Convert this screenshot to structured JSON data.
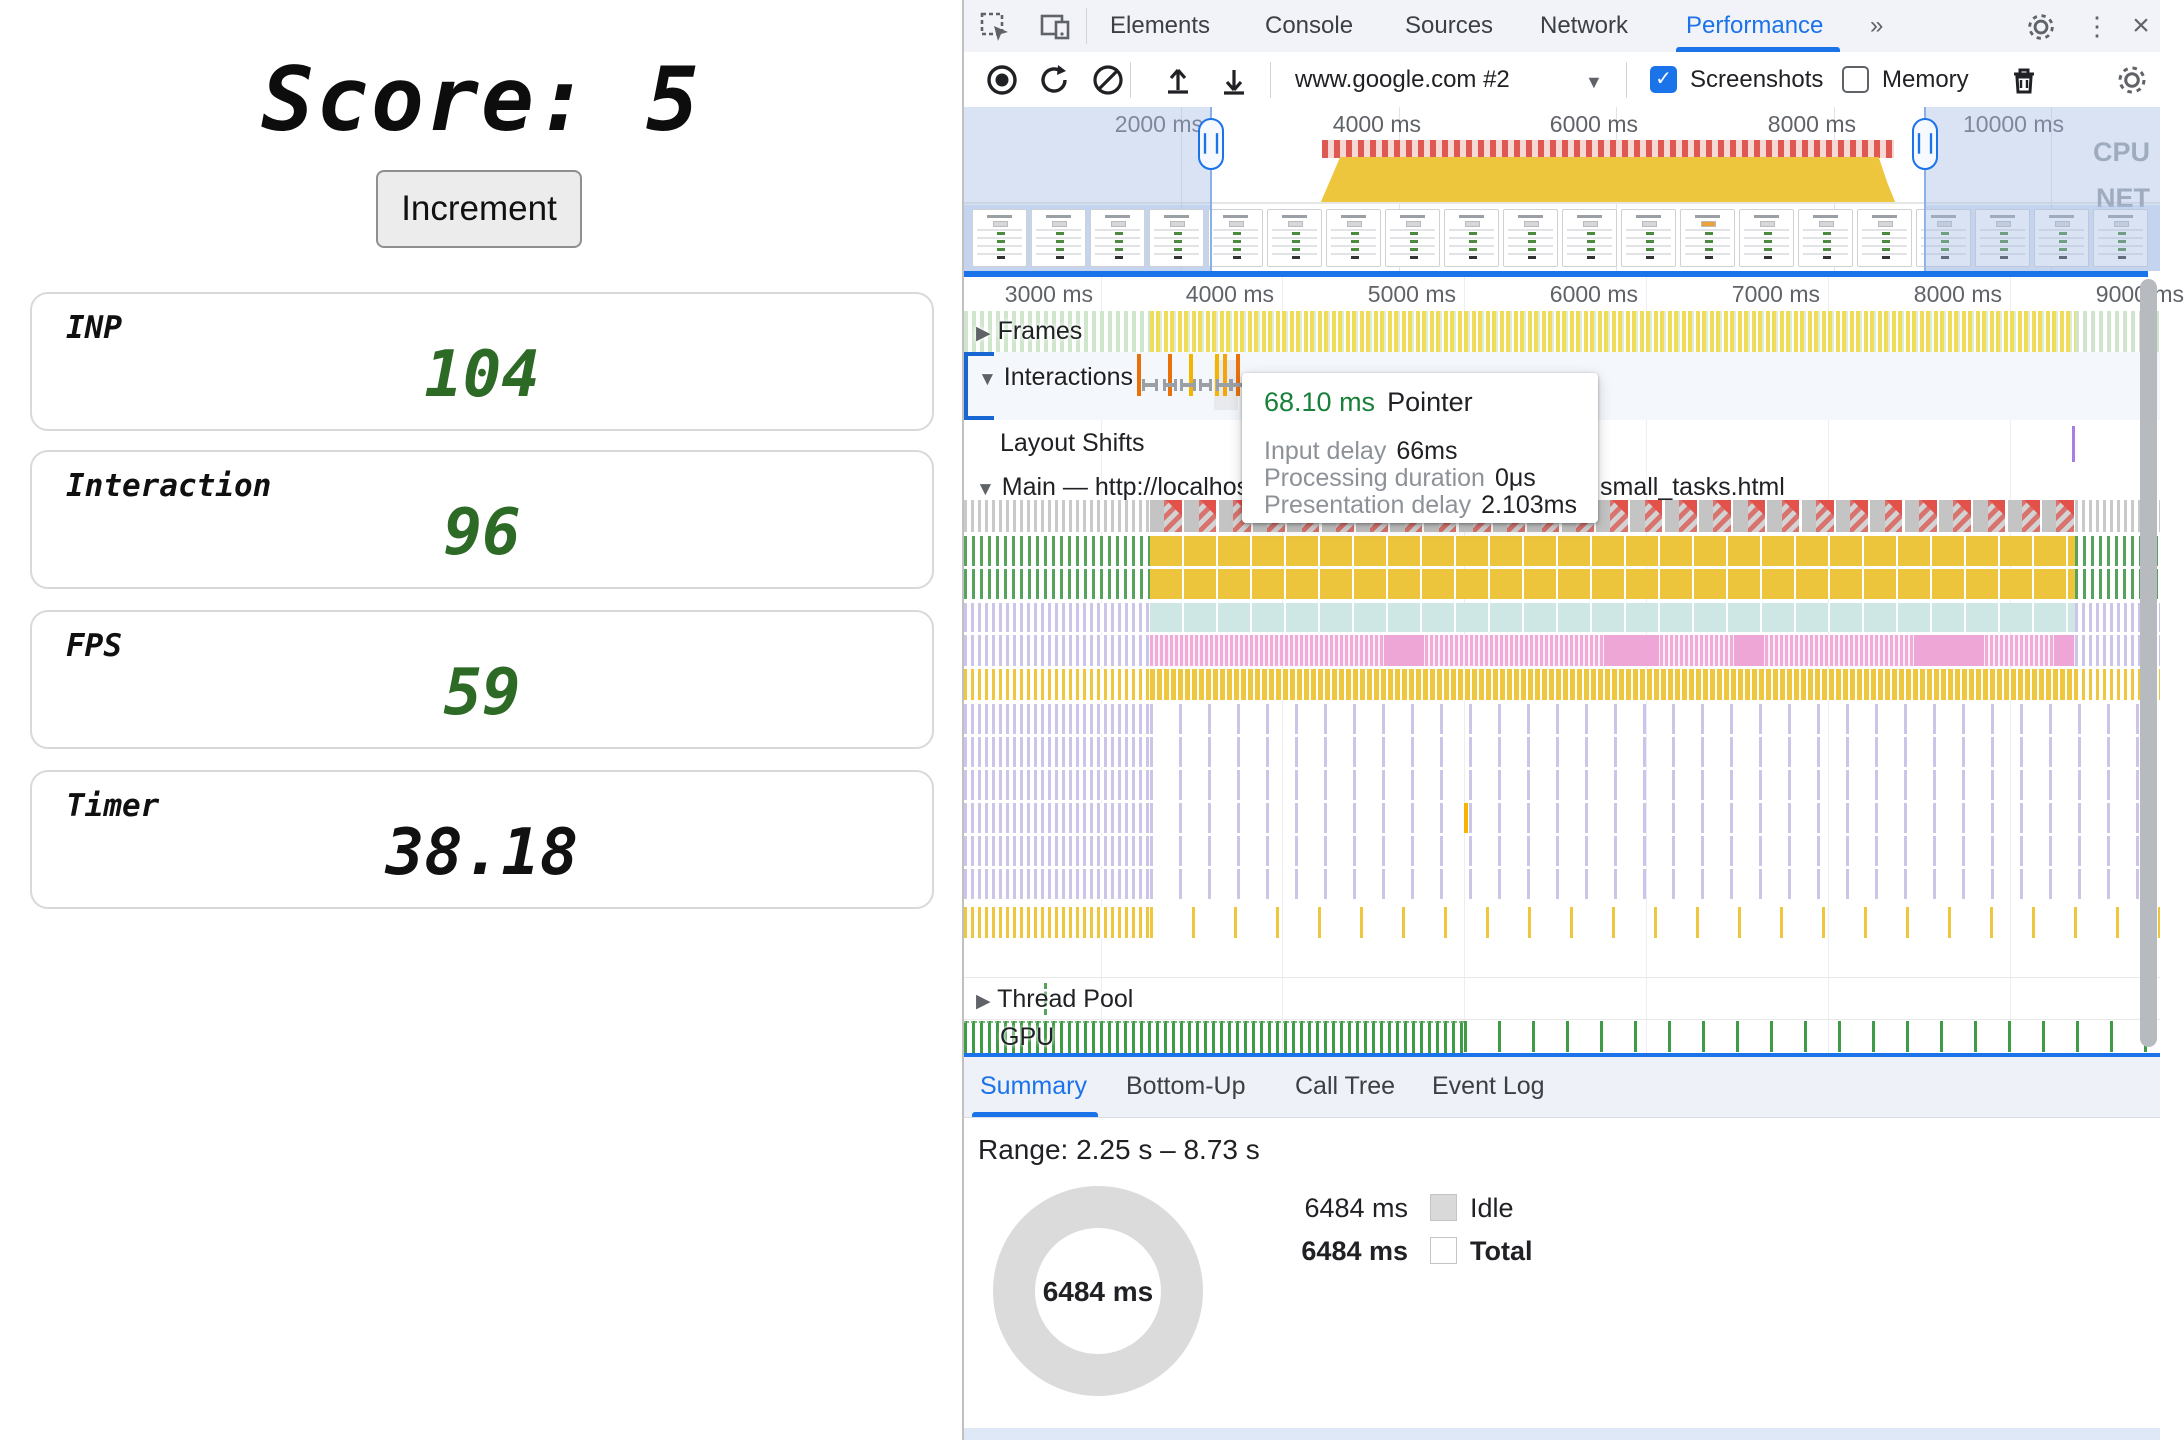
{
  "page": {
    "title": "Score: 5",
    "button": "Increment",
    "metrics": [
      {
        "label": "INP",
        "value": "104",
        "color": "#2d6a26"
      },
      {
        "label": "Interaction",
        "value": "96",
        "color": "#2d6a26"
      },
      {
        "label": "FPS",
        "value": "59",
        "color": "#2d6a26"
      },
      {
        "label": "Timer",
        "value": "38.18",
        "color": "#111111"
      }
    ]
  },
  "devtools": {
    "tabs": [
      "Elements",
      "Console",
      "Sources",
      "Network",
      "Performance"
    ],
    "active_tab": "Performance",
    "more_tabs_icon": "»",
    "toolbar": {
      "target": "www.google.com #2",
      "screenshots_label": "Screenshots",
      "memory_label": "Memory",
      "check_glyph": "✓"
    },
    "overview": {
      "ruler": [
        "2000 ms",
        "4000 ms",
        "6000 ms",
        "8000 ms",
        "10000 ms"
      ],
      "cpu_label": "CPU",
      "net_label": "NET",
      "handle_glyph": "∣∣"
    },
    "timeline": {
      "ruler": [
        "3000 ms",
        "4000 ms",
        "5000 ms",
        "6000 ms",
        "7000 ms",
        "8000 ms",
        "9000 ms"
      ],
      "frames_label": "Frames",
      "interactions_label": "Interactions",
      "layout_shifts_label": "Layout Shifts",
      "main_label_left": "Main — http://localhost:",
      "main_label_right": "small_tasks.html",
      "thread_pool_label": "Thread Pool",
      "gpu_label": "GPU",
      "expand_glyph": "▶",
      "collapse_glyph": "▼"
    },
    "tooltip": {
      "duration": "68.10 ms",
      "type": "Pointer",
      "rows": [
        {
          "label": "Input delay",
          "value": "66ms"
        },
        {
          "label": "Processing duration",
          "value": "0μs"
        },
        {
          "label": "Presentation delay",
          "value": "2.103ms"
        }
      ]
    },
    "bottom_tabs": [
      "Summary",
      "Bottom-Up",
      "Call Tree",
      "Event Log"
    ],
    "active_bottom_tab": "Summary",
    "summary": {
      "range": "Range: 2.25 s – 8.73 s",
      "donut_value": "6484 ms",
      "legend": [
        {
          "value": "6484 ms",
          "label": "Idle",
          "swatch": "#d9d9d9"
        },
        {
          "value": "6484 ms",
          "label": "Total",
          "swatch": "#ffffff"
        }
      ]
    },
    "colors": {
      "accent": "#1a73e8",
      "long_task_red": "#e05852",
      "scripting_yellow": "#edc53d",
      "system_teal": "#cfe7e4",
      "interaction_pink": "#f0abd9",
      "rendering_lavender": "#cdc4ea",
      "gpu_green": "#3f9b45"
    }
  }
}
